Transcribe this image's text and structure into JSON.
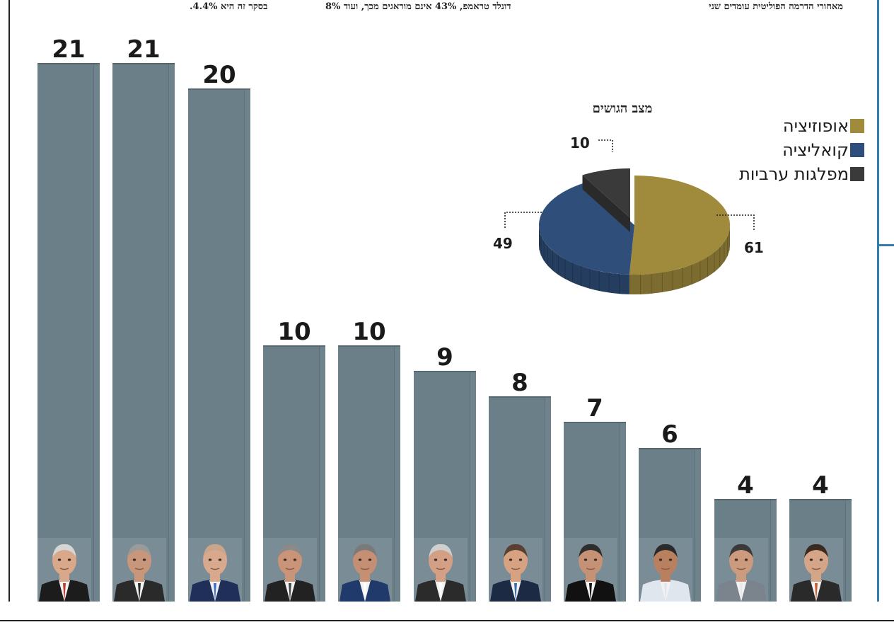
{
  "header": {
    "line_a": "מאחורי הדרמה הפוליטית עומדים שני",
    "line_b": "דונלד טראמפ, 43% אינם מוראגים מכך, ועוד 8%",
    "line_c": "בסקר זה היא 4.4%."
  },
  "chart_data": [
    {
      "type": "bar",
      "values": [
        21,
        21,
        20,
        10,
        10,
        9,
        8,
        7,
        6,
        4,
        4
      ],
      "data_labels": [
        "21",
        "21",
        "20",
        "10",
        "10",
        "9",
        "8",
        "7",
        "6",
        "4",
        "4"
      ],
      "ylim": [
        0,
        23
      ],
      "bar_color": "#6b7f89",
      "grid": false
    },
    {
      "type": "pie",
      "title": "מצב הגושים",
      "slices": [
        {
          "name": "אופוזיציה",
          "value": 61,
          "label": "61",
          "color": "#a08a3c"
        },
        {
          "name": "קואליציה",
          "value": 49,
          "label": "49",
          "color": "#2f4f7a"
        },
        {
          "name": "מפלגות ערביות",
          "value": 10,
          "label": "10",
          "color": "#3a3a3a"
        }
      ],
      "legend_position": "right"
    }
  ],
  "portraits": [
    {
      "shirt": "#1c1c1c",
      "skin": "#d9a88a",
      "tie": "#c0392b",
      "hair": "#d6d6d6"
    },
    {
      "shirt": "#2a2a2a",
      "skin": "#c8967a",
      "tie": "#2a2a2a",
      "hair": "#9a9a9a"
    },
    {
      "shirt": "#1f2f5a",
      "skin": "#d8a98c",
      "tie": "#3b6fd1",
      "hair": "#caa58a"
    },
    {
      "shirt": "#222222",
      "skin": "#c99478",
      "tie": "#444444",
      "hair": "#8a8a8a"
    },
    {
      "shirt": "#1f3a6b",
      "skin": "#c58f74",
      "tie": "#ffffff",
      "hair": "#7a7a7a"
    },
    {
      "shirt": "#2b2b2b",
      "skin": "#d3a085",
      "tie": "#ffffff",
      "hair": "#cfcfcf"
    },
    {
      "shirt": "#1c2a44",
      "skin": "#d7a282",
      "tie": "#3c6ea8",
      "hair": "#5a4030"
    },
    {
      "shirt": "#111111",
      "skin": "#c69275",
      "tie": "#111111",
      "hair": "#2d2d2d"
    },
    {
      "shirt": "#dfe6ee",
      "skin": "#b9805f",
      "tie": "#dfe6ee",
      "hair": "#2a2a2a"
    },
    {
      "shirt": "#7b838c",
      "skin": "#cc9a7c",
      "tie": "#e8e8e8",
      "hair": "#3a3a3a"
    },
    {
      "shirt": "#2a2a2a",
      "skin": "#d5a587",
      "tie": "#cc5a2a",
      "hair": "#3a2a1f"
    }
  ]
}
